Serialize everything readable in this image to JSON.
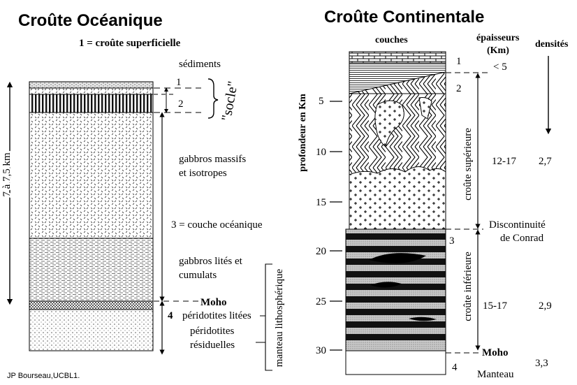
{
  "oceanic": {
    "title": "Croûte Océanique",
    "subtitle": "1 = croûte superficielle",
    "thickness_label": "7 à 7,5 km",
    "sediments_label": "sédiments",
    "layer1_label": "1",
    "layer2_label": "2",
    "socle_label": "\"socle\"",
    "gabbros_massive_line1": "gabbros massifs",
    "gabbros_massive_line2": "et isotropes",
    "layer3_label": "3  = couche océanique",
    "gabbros_layered_line1": "gabbros lités et",
    "gabbros_layered_line2": "cumulats",
    "moho_label": "Moho",
    "layer4_label": "4",
    "peridotites_layered": "péridotites litées",
    "peridotites_residual_line1": "péridotites",
    "peridotites_residual_line2": "résiduelles",
    "mantle_label": "manteau lithosphérique"
  },
  "continental": {
    "title": "Croûte Continentale",
    "couches_label": "couches",
    "epaisseurs_line1": "épaisseurs",
    "epaisseurs_line2": "(Km)",
    "densites_label": "densités",
    "depth_axis_label": "profondeur en Km",
    "depth_ticks": [
      "5",
      "10",
      "15",
      "20",
      "25",
      "30"
    ],
    "layer1_label": "1",
    "layer1_thickness": "< 5",
    "layer2_label": "2",
    "upper_crust_label": "croûte supérieure",
    "upper_thickness": "12-17",
    "upper_density": "2,7",
    "conrad_line1": "Discontinuité",
    "conrad_line2": "de Conrad",
    "layer3_label": "3",
    "lower_crust_label": "croûte inférieure",
    "lower_thickness": "15-17",
    "lower_density": "2,9",
    "moho_label": "Moho",
    "layer4_label": "4",
    "mantle_label": "Manteau",
    "mantle_density": "3,3"
  },
  "credit": "JP Bourseau,UCBL1."
}
